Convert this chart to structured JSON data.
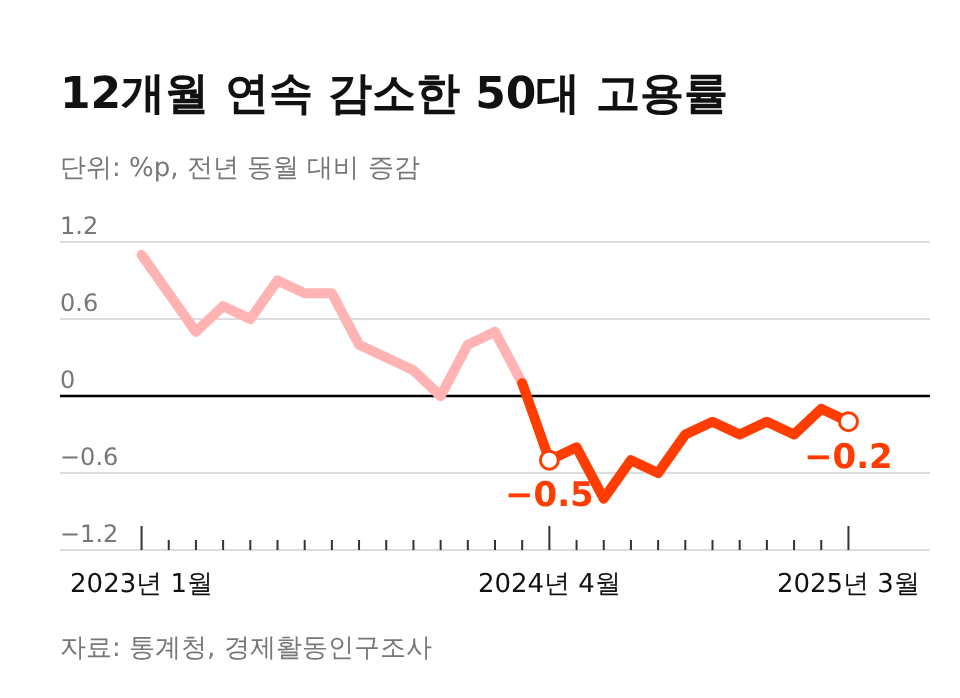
{
  "chart_data": {
    "type": "line",
    "title": "12개월 연속 감소한 50대 고용률",
    "subtitle": "단위: %p, 전년 동월 대비 증감",
    "annotations": [
      "자료: 통계청, 경제활동인구조사"
    ],
    "x": [
      "2023-01",
      "2023-02",
      "2023-03",
      "2023-04",
      "2023-05",
      "2023-06",
      "2023-07",
      "2023-08",
      "2023-09",
      "2023-10",
      "2023-11",
      "2023-12",
      "2024-01",
      "2024-02",
      "2024-03",
      "2024-04",
      "2024-05",
      "2024-06",
      "2024-07",
      "2024-08",
      "2024-09",
      "2024-10",
      "2024-11",
      "2024-12",
      "2025-01",
      "2025-02",
      "2025-03"
    ],
    "series": [
      {
        "color": "#ffb3b3",
        "values": [
          1.1,
          0.8,
          0.5,
          0.7,
          0.6,
          0.9,
          0.8,
          0.8,
          0.4,
          0.3,
          0.2,
          0,
          0.4,
          0.5,
          0.1,
          null,
          null,
          null,
          null,
          null,
          null,
          null,
          null,
          null,
          null,
          null,
          null
        ]
      },
      {
        "color": "#ff3d00",
        "values": [
          null,
          null,
          null,
          null,
          null,
          null,
          null,
          null,
          null,
          null,
          null,
          null,
          null,
          null,
          0.1,
          -0.5,
          -0.4,
          -0.8,
          -0.5,
          -0.6,
          -0.3,
          -0.2,
          -0.3,
          -0.2,
          -0.3,
          -0.1,
          -0.2
        ],
        "value_labels": [
          null,
          null,
          null,
          null,
          null,
          null,
          null,
          null,
          null,
          null,
          null,
          null,
          null,
          null,
          null,
          "−0.5",
          null,
          null,
          null,
          null,
          null,
          null,
          null,
          null,
          null,
          null,
          "−0.2"
        ]
      }
    ],
    "xlim": [
      "2022-10",
      "2025-06"
    ],
    "xticks": [
      {
        "value": "2023-01",
        "label": "2023년 1월"
      },
      {
        "value": "2023-02",
        "label": null
      },
      {
        "value": "2023-03",
        "label": null
      },
      {
        "value": "2023-04",
        "label": null
      },
      {
        "value": "2023-05",
        "label": null
      },
      {
        "value": "2023-06",
        "label": null
      },
      {
        "value": "2023-07",
        "label": null
      },
      {
        "value": "2023-08",
        "label": null
      },
      {
        "value": "2023-09",
        "label": null
      },
      {
        "value": "2023-10",
        "label": null
      },
      {
        "value": "2023-11",
        "label": null
      },
      {
        "value": "2023-12",
        "label": null
      },
      {
        "value": "2024-01",
        "label": null
      },
      {
        "value": "2024-02",
        "label": null
      },
      {
        "value": "2024-03",
        "label": null
      },
      {
        "value": "2024-04",
        "label": "2024년 4월"
      },
      {
        "value": "2024-05",
        "label": null
      },
      {
        "value": "2024-06",
        "label": null
      },
      {
        "value": "2024-07",
        "label": null
      },
      {
        "value": "2024-08",
        "label": null
      },
      {
        "value": "2024-09",
        "label": null
      },
      {
        "value": "2024-10",
        "label": null
      },
      {
        "value": "2024-11",
        "label": null
      },
      {
        "value": "2024-12",
        "label": null
      },
      {
        "value": "2025-01",
        "label": null
      },
      {
        "value": "2025-02",
        "label": null
      },
      {
        "value": "2025-03",
        "label": "2025년 3월"
      }
    ],
    "ylim": [
      -1.2,
      1.2
    ],
    "yticks": [
      1.2,
      0.6,
      0,
      {
        "value": -0.6,
        "label": "−0.6"
      },
      {
        "value": -1.2,
        "label": "−1.2"
      }
    ],
    "grid": "y"
  }
}
